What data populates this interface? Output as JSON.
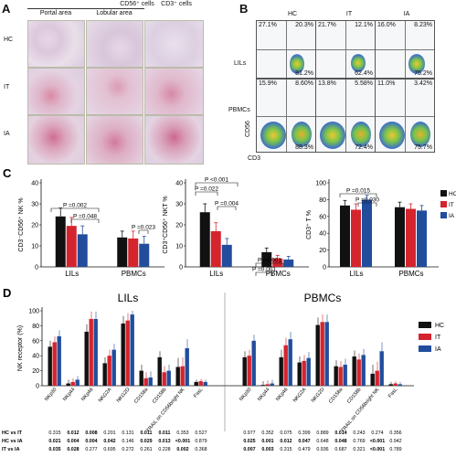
{
  "panelA": {
    "letter": "A",
    "header_cd56": "CD56⁺ cells",
    "header_cd3": "CD3⁺ cells",
    "col_portal": "Portal area",
    "col_lobular": "Lobular area",
    "rows": [
      "HC",
      "IT",
      "IA"
    ]
  },
  "panelB": {
    "letter": "B",
    "cols": [
      "HC",
      "IT",
      "IA"
    ],
    "row_lils": "LILs",
    "row_pbmcs": "PBMCs",
    "xlabel": "CD3",
    "ylabel": "CD56",
    "lils": [
      {
        "ul": "27.1%",
        "ur": "20.3%",
        "lr": "81.2%"
      },
      {
        "ul": "21.7%",
        "ur": "12.1%",
        "lr": "62.4%"
      },
      {
        "ul": "16.0%",
        "ur": "8.23%",
        "lr": "75.2%"
      }
    ],
    "pbmcs": [
      {
        "ul": "15.9%",
        "ur": "8.60%",
        "lr": "88.3%"
      },
      {
        "ul": "13.8%",
        "ur": "5.58%",
        "lr": "72.4%"
      },
      {
        "ul": "11.0%",
        "ur": "3.42%",
        "lr": "75.7%"
      }
    ]
  },
  "colors": {
    "HC": "#111111",
    "IT": "#d4242e",
    "IA": "#214d9c"
  },
  "chart_data": [
    {
      "type": "bar",
      "panel": "C",
      "ylabel": "CD3⁻CD56⁺ NK %",
      "ylim": [
        0,
        40
      ],
      "yticks": [
        0,
        10,
        20,
        30,
        40
      ],
      "categories": [
        "LILs",
        "PBMCs"
      ],
      "series": [
        {
          "name": "HC",
          "values": [
            24,
            14
          ],
          "err": [
            4,
            3
          ]
        },
        {
          "name": "IT",
          "values": [
            19.5,
            13.5
          ],
          "err": [
            4,
            3.5
          ]
        },
        {
          "name": "IA",
          "values": [
            15.5,
            11
          ],
          "err": [
            4,
            3.5
          ]
        }
      ],
      "annotations": [
        "P =0.002",
        "P =0.048",
        "P =0.023"
      ]
    },
    {
      "type": "bar",
      "panel": "C",
      "ylabel": "CD3⁺CD56⁺ NKT %",
      "ylim": [
        0,
        40
      ],
      "yticks": [
        0,
        10,
        20,
        30,
        40
      ],
      "categories": [
        "LILs",
        "PBMCs"
      ],
      "series": [
        {
          "name": "HC",
          "values": [
            26,
            7
          ],
          "err": [
            4,
            2
          ]
        },
        {
          "name": "IT",
          "values": [
            17,
            4
          ],
          "err": [
            4,
            1.5
          ]
        },
        {
          "name": "IA",
          "values": [
            10.5,
            3.5
          ],
          "err": [
            3,
            1.5
          ]
        }
      ],
      "annotations": [
        "P <0.001",
        "P =0.022",
        "P =0.004",
        "P <0.001",
        "P =0.001"
      ]
    },
    {
      "type": "bar",
      "panel": "C",
      "ylabel": "CD3⁺ T %",
      "ylim": [
        0,
        100
      ],
      "yticks": [
        0,
        20,
        40,
        60,
        80,
        100
      ],
      "categories": [
        "LILs",
        "PBMCs"
      ],
      "series": [
        {
          "name": "HC",
          "values": [
            73,
            71
          ],
          "err": [
            6,
            6
          ]
        },
        {
          "name": "IT",
          "values": [
            68,
            69
          ],
          "err": [
            7,
            6
          ]
        },
        {
          "name": "IA",
          "values": [
            80,
            67
          ],
          "err": [
            5,
            6
          ]
        }
      ],
      "annotations": [
        "P =0.015",
        "P =0.030"
      ],
      "legend": [
        "HC",
        "IT",
        "IA"
      ]
    },
    {
      "type": "bar",
      "panel": "D",
      "ylabel": "NK receptor (%)",
      "ylim": [
        0,
        100
      ],
      "yticks": [
        0,
        20,
        40,
        60,
        80,
        100
      ],
      "groups": [
        {
          "title": "LILs",
          "categories": [
            "NKp30",
            "NKp44",
            "NKp46",
            "NKG2A",
            "NKG2D",
            "CD158a",
            "CD158b",
            "TRAIL on CD56bright NK",
            "FasL"
          ],
          "series": [
            {
              "name": "HC",
              "values": [
                52,
                3,
                72,
                30,
                83,
                20,
                38,
                25,
                5
              ]
            },
            {
              "name": "IT",
              "values": [
                58,
                5,
                89,
                40,
                87,
                10,
                18,
                26,
                6
              ]
            },
            {
              "name": "IA",
              "values": [
                66,
                8,
                89,
                48,
                95,
                11,
                20,
                50,
                5
              ]
            }
          ]
        },
        {
          "title": "PBMCs",
          "categories": [
            "NKp30",
            "NKp44",
            "NKp46",
            "NKG2A",
            "NKG2D",
            "CD158a",
            "CD158b",
            "TRAIL on CD56bright NK",
            "FasL"
          ],
          "series": [
            {
              "name": "HC",
              "values": [
                38,
                1,
                38,
                31,
                81,
                26,
                39,
                16,
                2
              ]
            },
            {
              "name": "IT",
              "values": [
                40,
                2,
                54,
                33,
                85,
                25,
                35,
                20,
                3
              ]
            },
            {
              "name": "IA",
              "values": [
                60,
                3,
                62,
                37,
                85,
                28,
                41,
                46,
                2
              ]
            }
          ]
        }
      ],
      "legend": [
        "HC",
        "IT",
        "IA"
      ],
      "pvalue_rows": [
        "HC vs IT",
        "HC vs IA",
        "IT vs IA"
      ],
      "pvalues_lils": [
        [
          "0.315",
          "0.012",
          "0.008",
          "0.201",
          "0.131",
          "0.011",
          "0.011",
          "0.353",
          "0.527"
        ],
        [
          "0.021",
          "0.004",
          "0.004",
          "0.042",
          "0.146",
          "0.029",
          "0.013",
          "<0.001",
          "0.879"
        ],
        [
          "0.035",
          "0.028",
          "0.277",
          "0.695",
          "0.272",
          "0.261",
          "0.228",
          "0.002",
          "0.368"
        ]
      ],
      "pvalues_pbmcs": [
        [
          "0.977",
          "0.352",
          "0.075",
          "0.399",
          "0.889",
          "0.014",
          "0.243",
          "0.274",
          "0.356"
        ],
        [
          "0.025",
          "0.001",
          "0.012",
          "0.047",
          "0.648",
          "0.048",
          "0.769",
          "<0.001",
          "0.942"
        ],
        [
          "0.007",
          "0.003",
          "0.315",
          "0.479",
          "0.936",
          "0.687",
          "0.321",
          "<0.001",
          "0.789"
        ]
      ]
    }
  ]
}
